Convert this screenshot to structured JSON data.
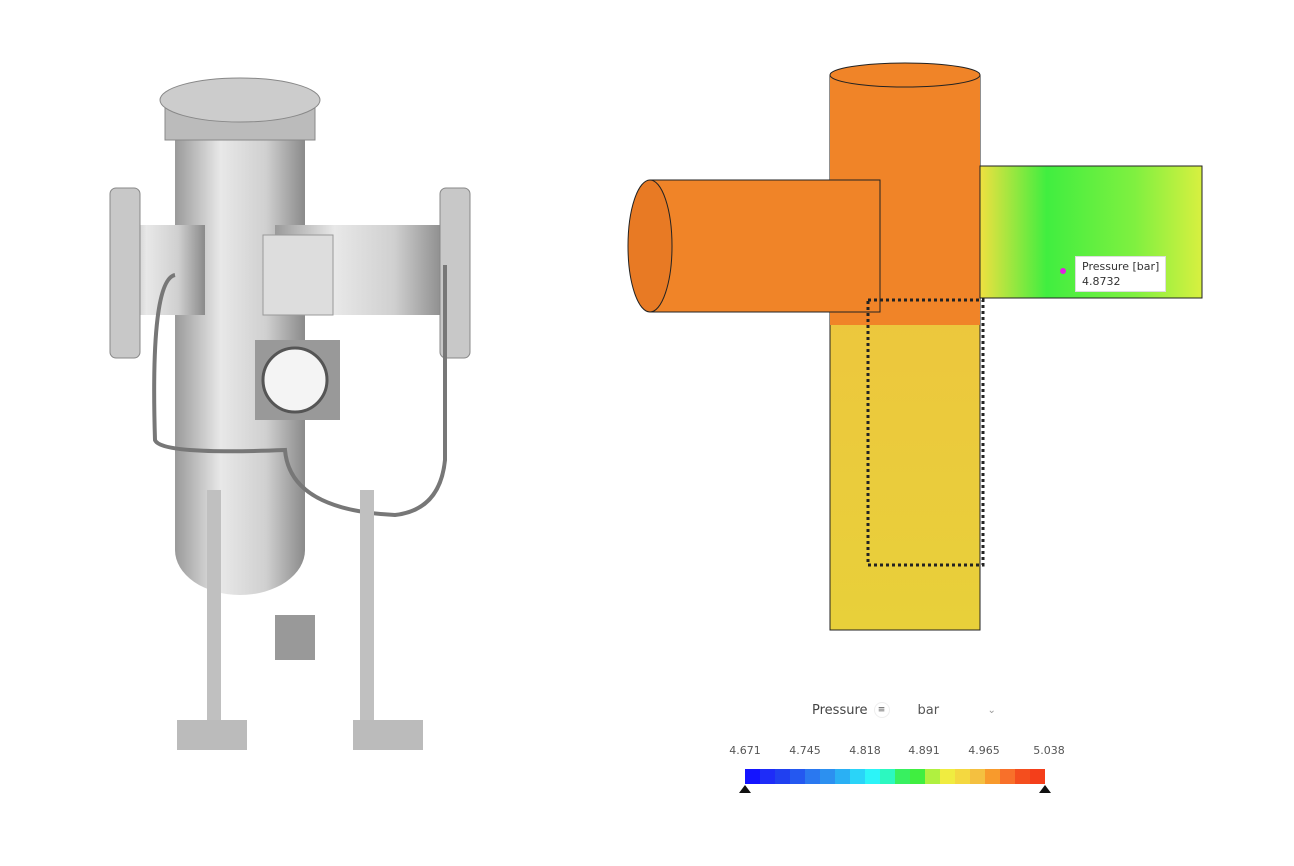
{
  "tooltip": {
    "label": "Pressure [bar]",
    "value": "4.8732"
  },
  "legend": {
    "field": "Pressure",
    "unit": "bar",
    "ticks": [
      "4.671",
      "4.745",
      "4.818",
      "4.891",
      "4.965",
      "5.038"
    ],
    "range": [
      4.671,
      5.038
    ],
    "colors": [
      "#1414ff",
      "#1e2cf8",
      "#2040f0",
      "#2458f0",
      "#2a78f0",
      "#2c90f0",
      "#2ab0f4",
      "#2ad4f8",
      "#2cf4f8",
      "#2cf8c0",
      "#38f060",
      "#40ee40",
      "#b0f040",
      "#f0ec40",
      "#f4d840",
      "#f4c040",
      "#f89a2c",
      "#f8702a",
      "#f44e1e",
      "#f43e1a"
    ],
    "icons": {
      "menu": "menu-icon",
      "dropdown": "chevron-down-icon",
      "min_handle": "triangle-handle-icon",
      "max_handle": "triangle-handle-icon"
    }
  }
}
